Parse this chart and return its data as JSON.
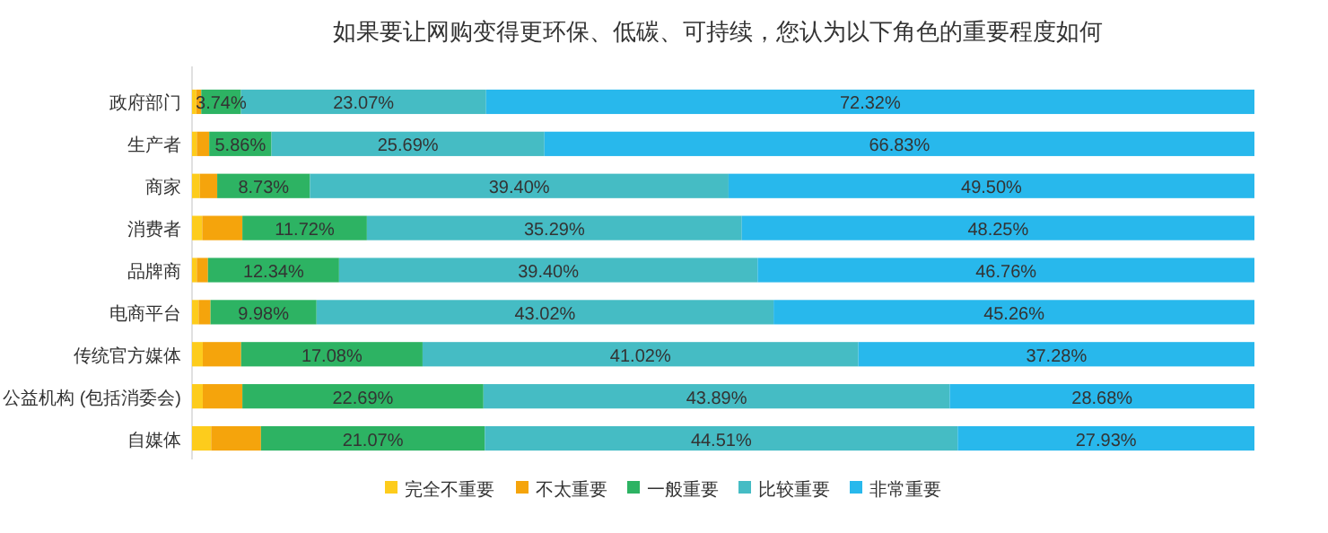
{
  "chart_data": {
    "type": "bar",
    "orientation": "horizontal",
    "stacked": true,
    "title": "如果要让网购变得更环保、低碳、可持续，您认为以下角色的重要程度如何",
    "categories": [
      "政府部门",
      "生产者",
      "商家",
      "消费者",
      "品牌商",
      "电商平台",
      "传统官方媒体",
      "公益机构 (包括消委会)",
      "自媒体"
    ],
    "series": [
      {
        "name": "完全不重要",
        "color": "#fdcc1c",
        "values": [
          0.4,
          0.45,
          0.73,
          0.96,
          0.45,
          0.62,
          1.01,
          1.01,
          1.8
        ]
      },
      {
        "name": "不太重要",
        "color": "#f5a40c",
        "values": [
          0.47,
          1.17,
          1.64,
          3.78,
          1.05,
          1.12,
          3.61,
          3.73,
          4.69
        ]
      },
      {
        "name": "一般重要",
        "color": "#2db363",
        "values": [
          3.74,
          5.86,
          8.73,
          11.72,
          12.34,
          9.98,
          17.08,
          22.69,
          21.07
        ],
        "value_labels": [
          "3.74%",
          "5.86%",
          "8.73%",
          "11.72%",
          "12.34%",
          "9.98%",
          "17.08%",
          "22.69%",
          "21.07%"
        ]
      },
      {
        "name": "比较重要",
        "color": "#45bcc4",
        "values": [
          23.07,
          25.69,
          39.4,
          35.29,
          39.4,
          43.02,
          41.02,
          43.89,
          44.51
        ],
        "value_labels": [
          "23.07%",
          "25.69%",
          "39.40%",
          "35.29%",
          "39.40%",
          "43.02%",
          "41.02%",
          "43.89%",
          "44.51%"
        ]
      },
      {
        "name": "非常重要",
        "color": "#28b8ec",
        "values": [
          72.32,
          66.83,
          49.5,
          48.25,
          46.76,
          45.26,
          37.28,
          28.68,
          27.93
        ],
        "value_labels": [
          "72.32%",
          "66.83%",
          "49.50%",
          "48.25%",
          "46.76%",
          "45.26%",
          "37.28%",
          "28.68%",
          "27.93%"
        ]
      }
    ],
    "legend": "bottom",
    "grid": false,
    "tick_labels": "y"
  }
}
